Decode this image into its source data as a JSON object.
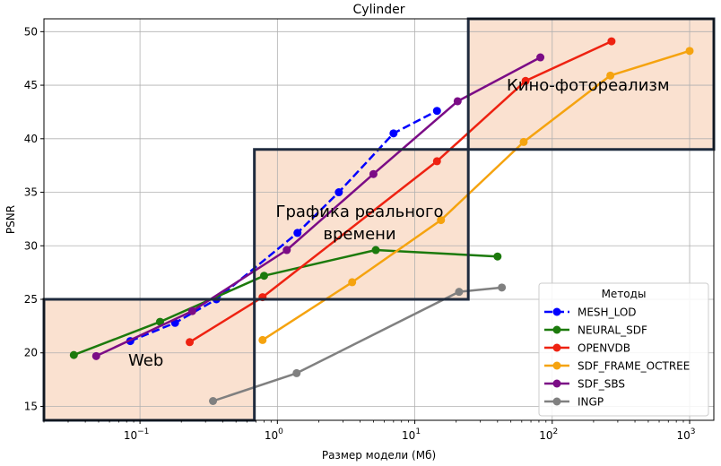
{
  "chart_data": {
    "type": "line",
    "title": "Cylinder",
    "xlabel": "Размер модели (Мб)",
    "ylabel": "PSNR",
    "xscale": "log",
    "xlim": [
      0.02,
      1500
    ],
    "ylim": [
      13.7,
      51.2
    ],
    "grid": true,
    "x_ticks": [
      0.1,
      1,
      10,
      100,
      1000
    ],
    "x_tick_labels": [
      {
        "base": "10",
        "exp": "−1"
      },
      {
        "base": "10",
        "exp": "0"
      },
      {
        "base": "10",
        "exp": "1"
      },
      {
        "base": "10",
        "exp": "2"
      },
      {
        "base": "10",
        "exp": "3"
      }
    ],
    "y_ticks": [
      15,
      20,
      25,
      30,
      35,
      40,
      45,
      50
    ],
    "legend": {
      "title": "Методы",
      "position": "lower-right"
    },
    "series": [
      {
        "name": "MESH_LOD",
        "color": "#0000ff",
        "dashed": true,
        "x": [
          0.085,
          0.18,
          0.36,
          1.4,
          2.8,
          7.0,
          14.5
        ],
        "y": [
          21.1,
          22.8,
          25.0,
          31.2,
          35.0,
          40.5,
          42.6
        ]
      },
      {
        "name": "NEURAL_SDF",
        "color": "#1c7a0c",
        "dashed": false,
        "x": [
          0.033,
          0.14,
          0.8,
          5.2,
          40
        ],
        "y": [
          19.8,
          22.9,
          27.2,
          29.6,
          29.0
        ]
      },
      {
        "name": "OPENVDB",
        "color": "#ee2211",
        "dashed": false,
        "x": [
          0.23,
          0.78,
          14.5,
          64,
          270
        ],
        "y": [
          21.0,
          25.2,
          37.9,
          45.4,
          49.1
        ]
      },
      {
        "name": "SDF_FRAME_OCTREE",
        "color": "#f5a30f",
        "dashed": false,
        "x": [
          0.78,
          3.5,
          15.5,
          62,
          265,
          1000
        ],
        "y": [
          21.2,
          26.6,
          32.4,
          39.7,
          45.9,
          48.2
        ]
      },
      {
        "name": "SDF_SBS",
        "color": "#7b0c86",
        "dashed": false,
        "x": [
          0.048,
          0.24,
          1.17,
          5.0,
          20.5,
          82
        ],
        "y": [
          19.7,
          23.9,
          29.6,
          36.7,
          43.5,
          47.6
        ]
      },
      {
        "name": "INGP",
        "color": "#808080",
        "dashed": false,
        "x": [
          0.34,
          1.38,
          21,
          43
        ],
        "y": [
          15.5,
          18.1,
          25.7,
          26.1
        ]
      }
    ],
    "regions": [
      {
        "label": "Web",
        "x": [
          0.02,
          0.68
        ],
        "y": [
          13.7,
          25.0
        ]
      },
      {
        "label": "Графика реального\nвремени",
        "x": [
          0.68,
          24.5
        ],
        "y": [
          25.0,
          39.0
        ]
      },
      {
        "label": "Кино-фотореализм",
        "x": [
          24.5,
          1500
        ],
        "y": [
          39.0,
          51.2
        ]
      }
    ],
    "region_style": {
      "fill": "#f5c8aa",
      "stroke": "#1f2b3e"
    }
  }
}
